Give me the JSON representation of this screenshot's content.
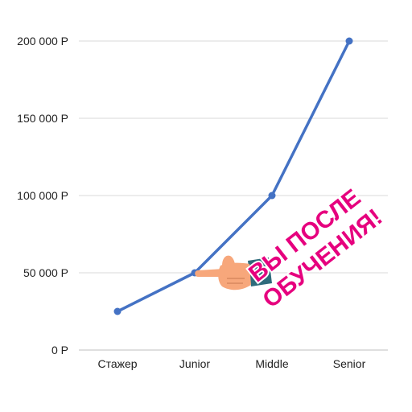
{
  "chart_data": {
    "type": "line",
    "categories": [
      "Стажер",
      "Junior",
      "Middle",
      "Senior"
    ],
    "values": [
      25000,
      50000,
      100000,
      200000
    ],
    "ylim": [
      0,
      200000
    ],
    "yticks": [
      0,
      50000,
      100000,
      150000,
      200000
    ],
    "ytick_labels": [
      "0 P",
      "50 000 P",
      "100 000 P",
      "150 000 P",
      "200 000 P"
    ],
    "grid": "horizontal",
    "legend": "none",
    "title": "",
    "xlabel": "",
    "ylabel": ""
  },
  "annotation": {
    "line1": "ВЫ ПОСЛЕ",
    "line2": "ОБУЧЕНИЯ!",
    "pointer_icon": "pointing-hand-icon"
  },
  "colors": {
    "line": "#4472c4",
    "grid": "#d9d9d9",
    "axis": "#bfbfbf",
    "callout": "#e6007e",
    "hand_skin": "#f7a77b",
    "sleeve": "#2e6b7b"
  }
}
